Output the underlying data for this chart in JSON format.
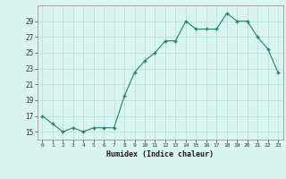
{
  "x": [
    0,
    1,
    2,
    3,
    4,
    5,
    6,
    7,
    8,
    9,
    10,
    11,
    12,
    13,
    14,
    15,
    16,
    17,
    18,
    19,
    20,
    21,
    22,
    23
  ],
  "y": [
    17,
    16,
    15,
    15.5,
    15,
    15.5,
    15.5,
    15.5,
    19.5,
    22.5,
    24,
    25,
    26.5,
    26.5,
    29,
    28,
    28,
    28,
    30,
    29,
    29,
    27,
    25.5,
    22.5
  ],
  "xlabel": "Humidex (Indice chaleur)",
  "line_color": "#2e7d6e",
  "bg_color": "#d8f5f0",
  "grid_color": "#b8ddd8",
  "xlim": [
    -0.5,
    23.5
  ],
  "ylim": [
    14,
    31
  ],
  "yticks": [
    15,
    17,
    19,
    21,
    23,
    25,
    27,
    29
  ],
  "xticks": [
    0,
    1,
    2,
    3,
    4,
    5,
    6,
    7,
    8,
    9,
    10,
    11,
    12,
    13,
    14,
    15,
    16,
    17,
    18,
    19,
    20,
    21,
    22,
    23
  ]
}
